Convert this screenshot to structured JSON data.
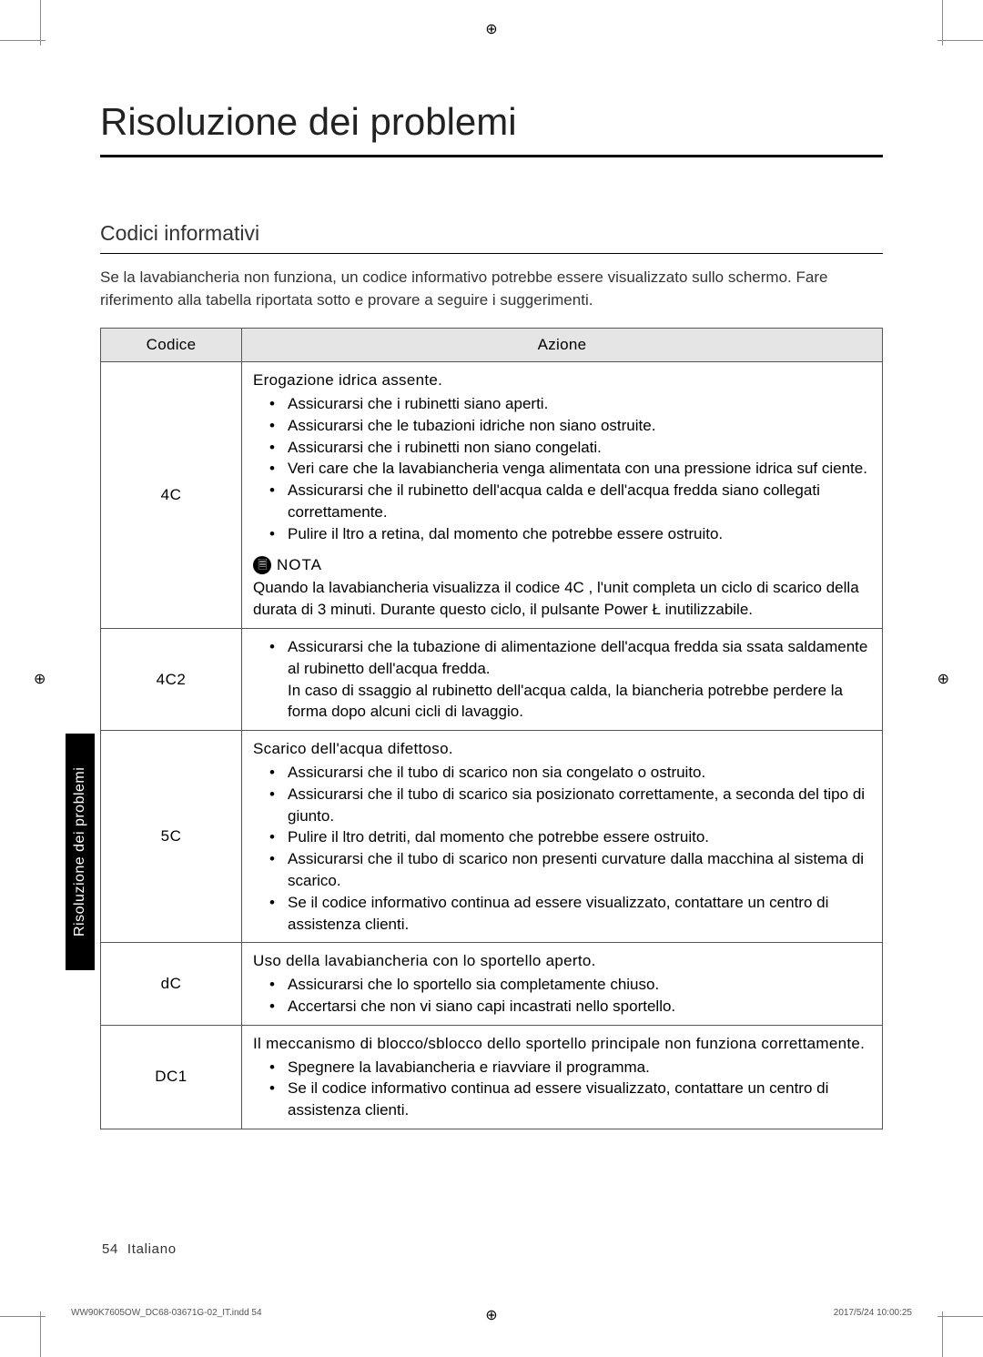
{
  "page_title": "Risoluzione dei problemi",
  "section_title": "Codici informativi",
  "intro": "Se la lavabiancheria non funziona, un codice informativo potrebbe essere visualizzato sullo schermo. Fare riferimento alla tabella riportata sotto e provare a seguire i suggerimenti.",
  "table": {
    "headers": {
      "code": "Codice",
      "action": "Azione"
    },
    "rows": [
      {
        "code": "4C",
        "heading": "Erogazione idrica assente.",
        "items": [
          "Assicurarsi che i rubinetti siano aperti.",
          "Assicurarsi che le tubazioni idriche non siano ostruite.",
          "Assicurarsi che i rubinetti non siano congelati.",
          "Veri care che la lavabiancheria venga alimentata con una pressione idrica suf ciente.",
          "Assicurarsi che il rubinetto dell'acqua calda e dell'acqua fredda siano collegati correttamente.",
          "Pulire il  ltro a retina, dal momento che potrebbe essere ostruito."
        ],
        "nota_label": "NOTA",
        "nota_body": "Quando la lavabiancheria visualizza il codice 4C , l'unit  completa un ciclo di scarico della durata di 3 minuti. Durante questo ciclo, il pulsante Power Ł inutilizzabile."
      },
      {
        "code": "4C2",
        "items": [
          "Assicurarsi che la tubazione di alimentazione dell'acqua fredda sia  ssata saldamente al rubinetto dell'acqua fredda.\nIn caso di  ssaggio al rubinetto dell'acqua calda, la biancheria potrebbe perdere la forma dopo alcuni cicli di lavaggio."
        ]
      },
      {
        "code": "5C",
        "heading": "Scarico dell'acqua difettoso.",
        "items": [
          "Assicurarsi che il tubo di scarico non sia congelato o ostruito.",
          "Assicurarsi che il tubo di scarico sia posizionato correttamente, a seconda del tipo di giunto.",
          "Pulire il  ltro detriti, dal momento che potrebbe essere ostruito.",
          "Assicurarsi che il tubo di scarico non presenti curvature dalla macchina al sistema di scarico.",
          "Se il codice informativo continua ad essere visualizzato, contattare un centro di assistenza clienti."
        ]
      },
      {
        "code": "dC",
        "heading": "Uso della lavabiancheria con lo sportello aperto.",
        "items": [
          "Assicurarsi che lo sportello sia completamente chiuso.",
          "Accertarsi che non vi siano capi incastrati nello sportello."
        ]
      },
      {
        "code": "DC1",
        "heading": "Il meccanismo di blocco/sblocco dello sportello principale non funziona correttamente.",
        "items": [
          "Spegnere la lavabiancheria e riavviare il programma.",
          "Se il codice informativo continua ad essere visualizzato, contattare un centro di assistenza clienti."
        ]
      }
    ]
  },
  "side_tab": "Risoluzione dei problemi",
  "footer": {
    "page_num": "54",
    "lang": "Italiano"
  },
  "print": {
    "left": "WW90K7605OW_DC68-03671G-02_IT.indd   54",
    "right": "2017/5/24   10:00:25"
  }
}
